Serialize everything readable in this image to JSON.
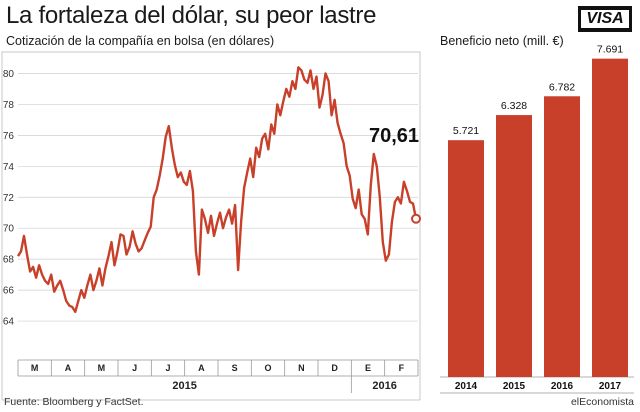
{
  "header": {
    "title": "La fortaleza del dólar, su peor lastre",
    "logo_text": "VISA"
  },
  "footer": {
    "source": "Fuente: Bloomberg y FactSet.",
    "brand": "elEconomista"
  },
  "colors": {
    "accent": "#c8402a",
    "grid": "#cfcfcf"
  },
  "chart_data": [
    {
      "type": "line",
      "title": "Cotización de la compañía en bolsa (en dólares)",
      "ylim": [
        62,
        81
      ],
      "yticks": [
        64,
        66,
        68,
        70,
        72,
        74,
        76,
        78,
        80
      ],
      "month_labels": [
        "M",
        "A",
        "M",
        "J",
        "J",
        "A",
        "S",
        "O",
        "N",
        "D",
        "E",
        "F"
      ],
      "year_labels": [
        "2015",
        "2016"
      ],
      "last_value_label": "70,61",
      "values": [
        68.2,
        68.5,
        69.5,
        68.3,
        67.2,
        67.5,
        66.8,
        67.6,
        67.0,
        66.6,
        66.4,
        67.0,
        65.9,
        66.3,
        66.6,
        66.0,
        65.3,
        65.0,
        64.9,
        64.6,
        65.3,
        66.0,
        65.5,
        66.3,
        67.0,
        66.0,
        66.6,
        67.4,
        66.3,
        67.4,
        68.2,
        69.1,
        67.6,
        68.5,
        69.6,
        69.5,
        68.3,
        68.8,
        69.8,
        69.0,
        68.5,
        68.7,
        69.2,
        69.7,
        70.1,
        72.0,
        72.5,
        73.4,
        74.5,
        75.9,
        76.6,
        75.2,
        74.1,
        73.3,
        73.6,
        73.0,
        72.8,
        73.7,
        72.4,
        68.5,
        67.0,
        71.2,
        70.6,
        69.7,
        70.8,
        69.5,
        70.3,
        71.0,
        70.0,
        70.7,
        71.2,
        70.3,
        71.5,
        67.3,
        70.4,
        72.6,
        73.6,
        74.5,
        73.3,
        75.2,
        74.6,
        75.8,
        76.1,
        75.1,
        76.7,
        76.1,
        78.0,
        77.3,
        78.2,
        79.0,
        78.5,
        79.5,
        79.0,
        80.4,
        80.2,
        79.6,
        79.4,
        80.2,
        79.0,
        79.8,
        77.8,
        78.6,
        80.0,
        79.5,
        77.3,
        78.3,
        76.8,
        76.1,
        75.5,
        74.0,
        73.4,
        71.9,
        71.3,
        72.5,
        70.9,
        70.6,
        69.6,
        72.8,
        74.8,
        74.0,
        72.0,
        69.1,
        67.9,
        68.3,
        70.4,
        71.7,
        72.0,
        71.6,
        73.0,
        72.4,
        71.7,
        71.6,
        70.61
      ]
    },
    {
      "type": "bar",
      "title": "Beneficio neto (mill. €)",
      "categories": [
        "2014",
        "2015",
        "2016",
        "2017"
      ],
      "values": [
        5721,
        6328,
        6782,
        7691
      ],
      "value_labels": [
        "5.721",
        "6.328",
        "6.782",
        "7.691"
      ],
      "ylim": [
        0,
        7900
      ]
    }
  ]
}
